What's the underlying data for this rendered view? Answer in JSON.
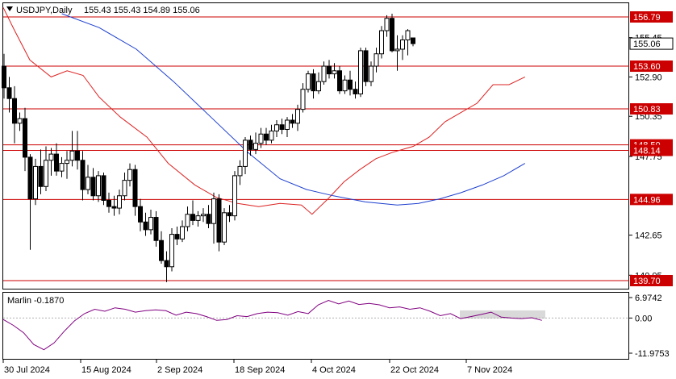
{
  "header": {
    "symbol": "USDJPY,Daily",
    "ohlc": "155.43 155.43 154.89 155.06"
  },
  "indicator": {
    "name": "Marlin",
    "value": "-0.1870",
    "label": "Marlin -0.1870",
    "scale_labels": [
      "6.9742",
      "0.00",
      "-11.9753"
    ]
  },
  "colors": {
    "background": "#ffffff",
    "candle_bull_fill": "#ffffff",
    "candle_bear_fill": "#000000",
    "candle_outline": "#000000",
    "level_lines": "#cc0000",
    "ma_fast": "#dd2222",
    "ma_slow": "#1d3fcf",
    "oscillator": "#800080",
    "last_price_box": "#ffffff"
  },
  "chart_data": {
    "type": "candlestick",
    "price_axis_labels": [
      "155.45",
      "152.90",
      "150.35",
      "147.75",
      "142.65",
      "140.05"
    ],
    "last_price_label": "155.06",
    "levels": [
      {
        "label": "156.79",
        "value": 156.79
      },
      {
        "label": "153.60",
        "value": 153.6
      },
      {
        "label": "150.83",
        "value": 150.83
      },
      {
        "label": "148.50",
        "value": 148.5
      },
      {
        "label": "148.14",
        "value": 148.14
      },
      {
        "label": "144.96",
        "value": 144.96
      },
      {
        "label": "139.70",
        "value": 139.7
      }
    ],
    "x_labels": [
      "30 Jul 2024",
      "15 Aug 2024",
      "2 Sep 2024",
      "18 Sep 2024",
      "4 Oct 2024",
      "22 Oct 2024",
      "7 Nov 2024"
    ],
    "ylim": [
      139.7,
      156.79
    ],
    "candles": [
      [
        153.6,
        154.4,
        151.5,
        152.2
      ],
      [
        152.2,
        152.9,
        150.6,
        151.5
      ],
      [
        151.5,
        152.3,
        148.6,
        149.9
      ],
      [
        149.9,
        150.6,
        149.4,
        150.2
      ],
      [
        150.2,
        150.9,
        146.8,
        147.7
      ],
      [
        147.7,
        147.9,
        141.7,
        145.0
      ],
      [
        145.0,
        147.6,
        144.6,
        147.1
      ],
      [
        147.1,
        148.2,
        145.3,
        145.8
      ],
      [
        145.8,
        148.4,
        145.5,
        147.5
      ],
      [
        147.5,
        148.3,
        146.5,
        147.9
      ],
      [
        147.9,
        148.6,
        146.5,
        146.8
      ],
      [
        146.8,
        147.7,
        146.4,
        147.3
      ],
      [
        147.3,
        148.1,
        146.3,
        147.5
      ],
      [
        147.5,
        149.4,
        147.1,
        148.1
      ],
      [
        148.1,
        149.4,
        146.9,
        147.5
      ],
      [
        147.5,
        148.1,
        144.9,
        145.6
      ],
      [
        145.6,
        147.2,
        145.3,
        146.4
      ],
      [
        146.4,
        147.0,
        144.9,
        145.2
      ],
      [
        145.2,
        146.8,
        144.8,
        146.5
      ],
      [
        146.5,
        146.7,
        144.6,
        144.9
      ],
      [
        144.9,
        145.4,
        144.1,
        144.5
      ],
      [
        144.5,
        145.2,
        143.9,
        144.4
      ],
      [
        144.4,
        145.6,
        144.0,
        145.2
      ],
      [
        145.2,
        146.7,
        144.9,
        146.2
      ],
      [
        146.2,
        147.3,
        145.8,
        146.9
      ],
      [
        146.9,
        147.2,
        143.9,
        144.5
      ],
      [
        144.5,
        145.0,
        142.9,
        143.5
      ],
      [
        143.5,
        144.1,
        142.6,
        143.0
      ],
      [
        143.0,
        144.3,
        142.7,
        143.8
      ],
      [
        143.8,
        144.2,
        141.9,
        142.3
      ],
      [
        142.3,
        142.9,
        140.8,
        141.0
      ],
      [
        141.0,
        141.6,
        139.6,
        140.6
      ],
      [
        140.6,
        143.1,
        140.3,
        142.7
      ],
      [
        142.7,
        143.2,
        142.0,
        142.4
      ],
      [
        142.4,
        143.6,
        142.2,
        143.2
      ],
      [
        143.2,
        144.5,
        142.9,
        144.0
      ],
      [
        144.0,
        144.9,
        143.3,
        143.6
      ],
      [
        143.6,
        144.2,
        143.2,
        143.9
      ],
      [
        143.9,
        144.4,
        143.5,
        144.0
      ],
      [
        144.0,
        144.6,
        143.1,
        143.4
      ],
      [
        143.4,
        145.4,
        142.1,
        145.0
      ],
      [
        145.0,
        145.3,
        141.6,
        142.2
      ],
      [
        142.2,
        144.4,
        142.0,
        144.1
      ],
      [
        144.1,
        144.6,
        143.5,
        143.9
      ],
      [
        143.9,
        146.8,
        143.6,
        146.5
      ],
      [
        146.5,
        147.5,
        145.9,
        147.1
      ],
      [
        147.1,
        149.0,
        146.6,
        148.8
      ],
      [
        148.8,
        149.1,
        147.8,
        148.2
      ],
      [
        148.2,
        149.3,
        147.9,
        148.6
      ],
      [
        148.6,
        149.6,
        148.3,
        149.2
      ],
      [
        149.2,
        149.6,
        148.5,
        148.8
      ],
      [
        148.8,
        149.8,
        148.6,
        149.4
      ],
      [
        149.4,
        150.1,
        149.0,
        149.8
      ],
      [
        149.8,
        150.2,
        149.2,
        149.5
      ],
      [
        149.5,
        150.3,
        149.0,
        150.1
      ],
      [
        150.1,
        150.5,
        149.6,
        149.9
      ],
      [
        149.9,
        151.1,
        149.4,
        150.8
      ],
      [
        150.8,
        152.5,
        150.6,
        152.1
      ],
      [
        152.1,
        153.3,
        151.9,
        153.1
      ],
      [
        153.1,
        153.4,
        151.5,
        152.0
      ],
      [
        152.0,
        153.2,
        151.8,
        152.6
      ],
      [
        152.6,
        153.9,
        152.4,
        153.6
      ],
      [
        153.6,
        154.0,
        152.8,
        153.1
      ],
      [
        153.1,
        153.8,
        152.8,
        153.3
      ],
      [
        153.3,
        153.6,
        151.8,
        152.0
      ],
      [
        152.0,
        153.0,
        151.8,
        152.7
      ],
      [
        152.7,
        153.3,
        151.7,
        152.1
      ],
      [
        152.1,
        152.6,
        151.5,
        151.8
      ],
      [
        151.8,
        154.8,
        151.6,
        154.6
      ],
      [
        154.6,
        154.8,
        152.3,
        152.6
      ],
      [
        152.6,
        153.9,
        152.3,
        153.6
      ],
      [
        153.6,
        154.8,
        153.2,
        154.4
      ],
      [
        154.4,
        156.2,
        154.1,
        155.9
      ],
      [
        155.9,
        156.9,
        155.5,
        156.7
      ],
      [
        156.7,
        157.0,
        154.5,
        154.6
      ],
      [
        154.6,
        155.6,
        153.3,
        154.7
      ],
      [
        154.7,
        155.6,
        154.0,
        155.3
      ],
      [
        155.3,
        156.0,
        154.3,
        155.9
      ],
      [
        155.43,
        155.43,
        154.89,
        155.06
      ]
    ],
    "ma_fast": [
      [
        0,
        157.4
      ],
      [
        2,
        156.0
      ],
      [
        5,
        154.0
      ],
      [
        9,
        152.9
      ],
      [
        12,
        153.3
      ],
      [
        15,
        153.0
      ],
      [
        18,
        151.6
      ],
      [
        22,
        150.3
      ],
      [
        27,
        149.0
      ],
      [
        31,
        147.3
      ],
      [
        36,
        145.9
      ],
      [
        40,
        145.1
      ],
      [
        44,
        144.7
      ],
      [
        48,
        144.5
      ],
      [
        52,
        144.7
      ],
      [
        56,
        144.6
      ],
      [
        58,
        144.0
      ],
      [
        61,
        145.0
      ],
      [
        64,
        146.1
      ],
      [
        67,
        146.9
      ],
      [
        70,
        147.6
      ],
      [
        73,
        148.0
      ],
      [
        77,
        148.4
      ],
      [
        80,
        149.0
      ],
      [
        83,
        150.0
      ],
      [
        86,
        150.6
      ],
      [
        89,
        151.2
      ],
      [
        92,
        152.4
      ],
      [
        95,
        152.4
      ],
      [
        98,
        152.9
      ]
    ],
    "ma_slow": [
      [
        11,
        157.0
      ],
      [
        18,
        156.1
      ],
      [
        25,
        154.7
      ],
      [
        32,
        152.6
      ],
      [
        39,
        150.3
      ],
      [
        46,
        148.0
      ],
      [
        52,
        146.3
      ],
      [
        57,
        145.6
      ],
      [
        62,
        145.2
      ],
      [
        68,
        144.8
      ],
      [
        74,
        144.6
      ],
      [
        78,
        144.7
      ],
      [
        82,
        145.0
      ],
      [
        86,
        145.4
      ],
      [
        90,
        145.9
      ],
      [
        94,
        146.5
      ],
      [
        98,
        147.3
      ]
    ],
    "oscillator": [
      [
        0,
        -0.5
      ],
      [
        2,
        -2.5
      ],
      [
        4,
        -5.0
      ],
      [
        6,
        -9.0
      ],
      [
        8,
        -10.8
      ],
      [
        10,
        -8.5
      ],
      [
        12,
        -4.5
      ],
      [
        14,
        -1.0
      ],
      [
        16,
        1.5
      ],
      [
        18,
        3.0
      ],
      [
        20,
        2.3
      ],
      [
        22,
        3.5
      ],
      [
        24,
        3.0
      ],
      [
        26,
        2.0
      ],
      [
        28,
        2.5
      ],
      [
        30,
        2.8
      ],
      [
        32,
        2.5
      ],
      [
        34,
        1.0
      ],
      [
        36,
        2.0
      ],
      [
        38,
        1.5
      ],
      [
        40,
        0.5
      ],
      [
        42,
        -0.8
      ],
      [
        44,
        -0.5
      ],
      [
        46,
        0.8
      ],
      [
        48,
        0.5
      ],
      [
        50,
        1.5
      ],
      [
        52,
        2.0
      ],
      [
        54,
        1.8
      ],
      [
        56,
        1.0
      ],
      [
        58,
        2.2
      ],
      [
        60,
        1.5
      ],
      [
        62,
        4.5
      ],
      [
        64,
        6.0
      ],
      [
        66,
        4.8
      ],
      [
        68,
        5.8
      ],
      [
        70,
        4.6
      ],
      [
        72,
        5.0
      ],
      [
        74,
        4.5
      ],
      [
        76,
        3.5
      ],
      [
        78,
        3.8
      ],
      [
        80,
        3.0
      ],
      [
        82,
        3.5
      ],
      [
        84,
        2.3
      ],
      [
        86,
        0.8
      ],
      [
        88,
        1.5
      ],
      [
        90,
        -0.2
      ],
      [
        92,
        0.5
      ],
      [
        94,
        1.2
      ],
      [
        96,
        2.0
      ],
      [
        98,
        0.3
      ],
      [
        100,
        0.0
      ],
      [
        102,
        -0.2
      ],
      [
        104,
        0.1
      ],
      [
        106,
        -0.8
      ]
    ]
  }
}
